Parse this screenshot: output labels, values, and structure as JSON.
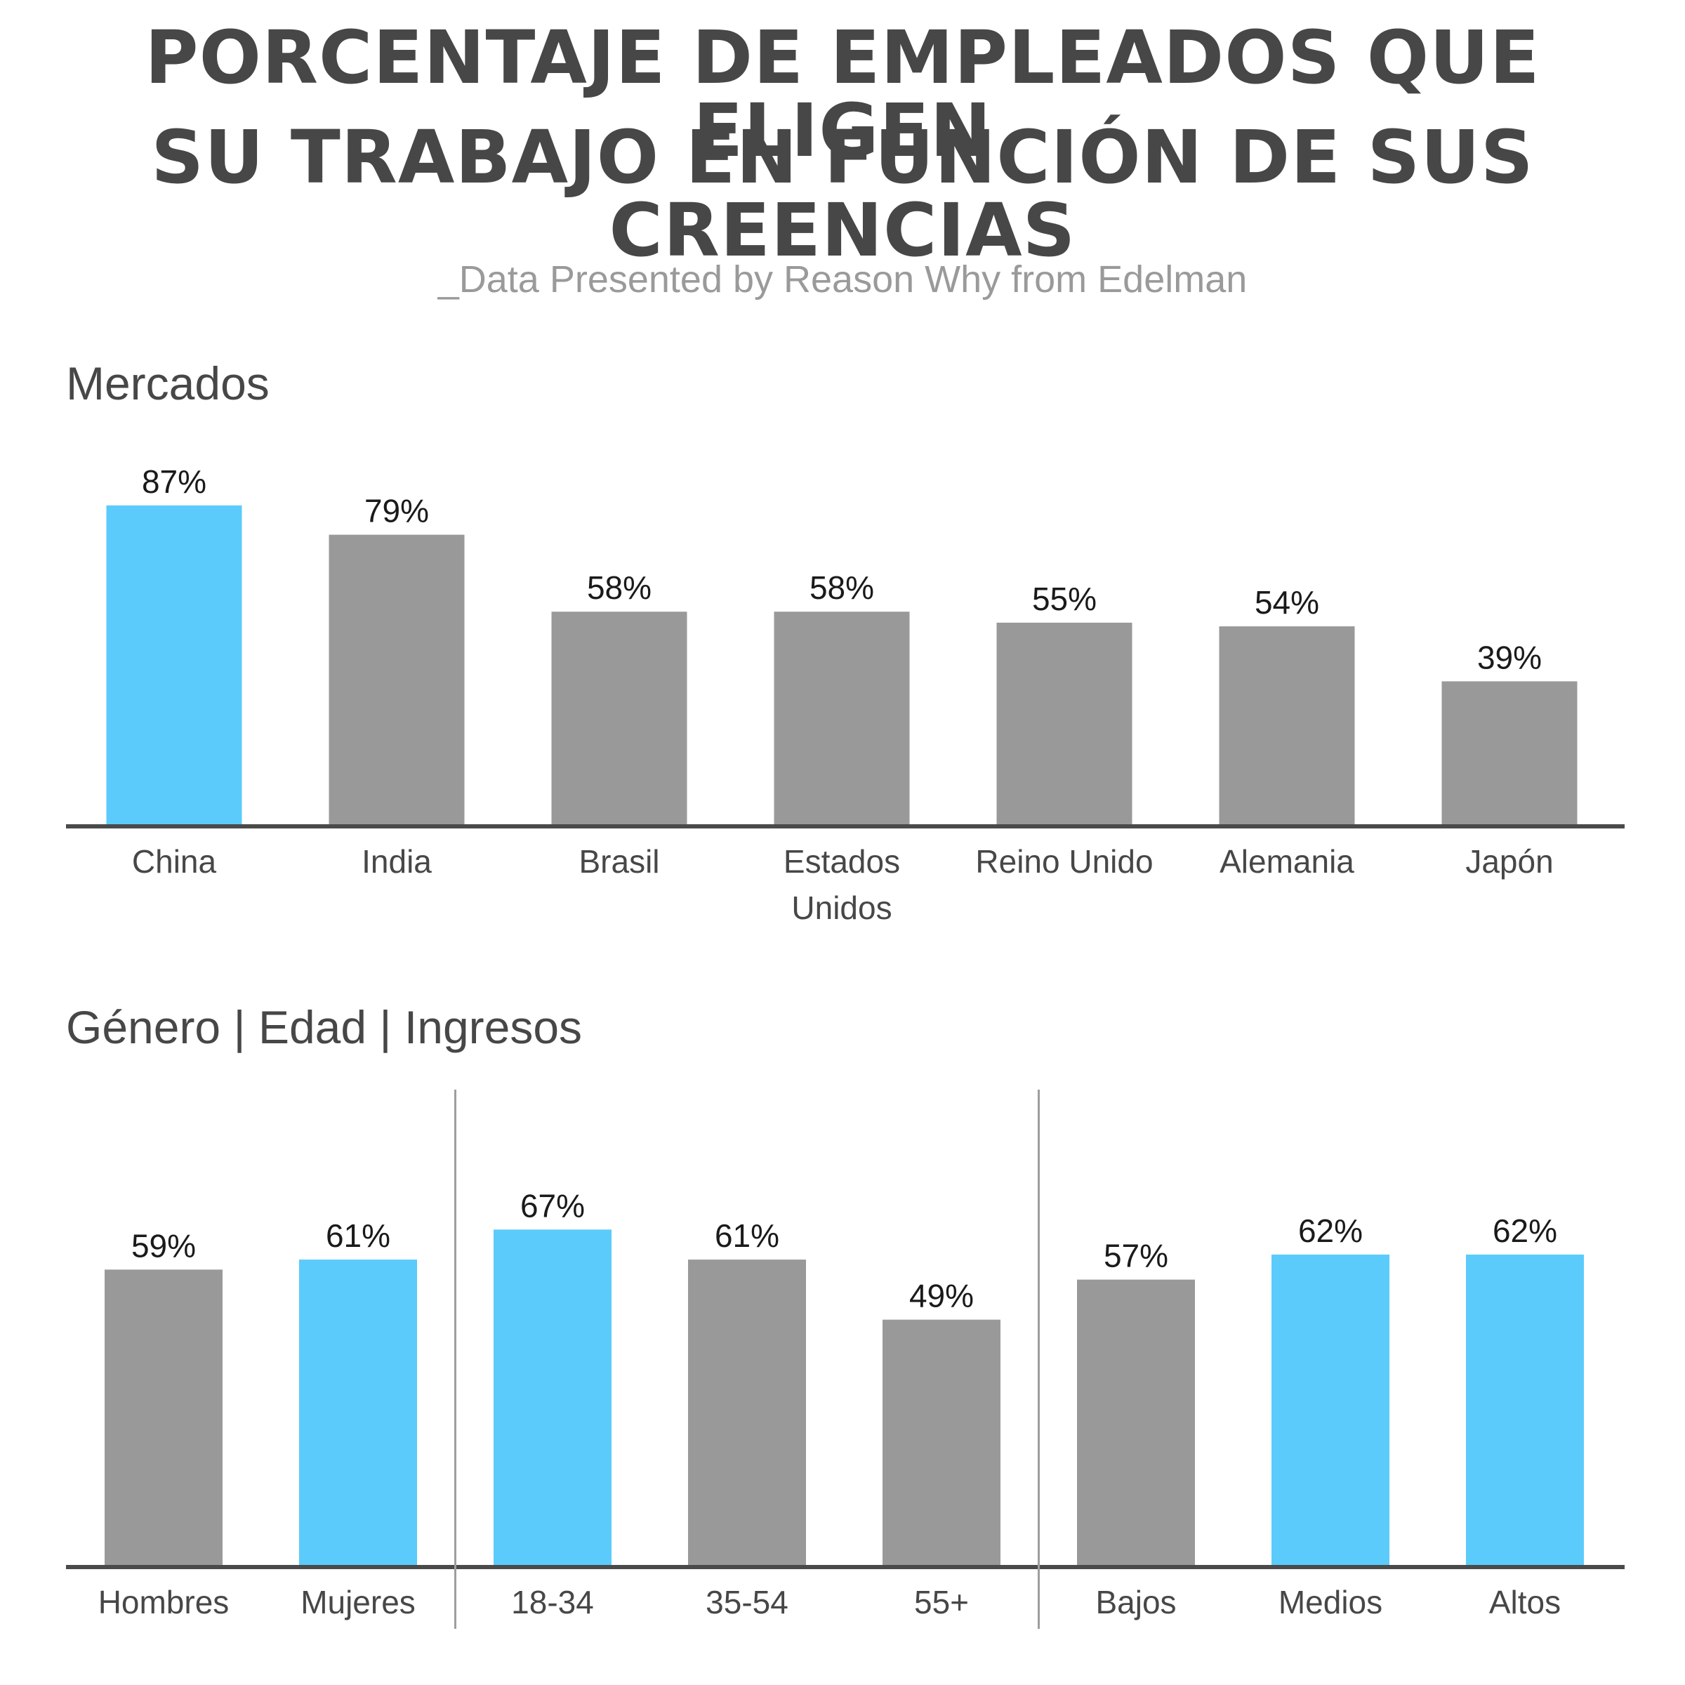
{
  "title_line1": "PORCENTAJE DE EMPLEADOS QUE ELIGEN",
  "title_line2": "SU TRABAJO EN FUNCIÓN DE SUS CREENCIAS",
  "subtitle": "_Data Presented by Reason Why from Edelman",
  "colors": {
    "highlight": "#5bcbfb",
    "default": "#999999",
    "axis": "#4a4a4a",
    "divider": "#9e9e9e"
  },
  "chart_data": [
    {
      "type": "bar",
      "title": "Mercados",
      "categories": [
        [
          "China"
        ],
        [
          "India"
        ],
        [
          "Brasil"
        ],
        [
          "Estados",
          "Unidos"
        ],
        [
          "Reino Unido"
        ],
        [
          "Alemania"
        ],
        [
          "Japón"
        ]
      ],
      "values": [
        87,
        79,
        58,
        58,
        55,
        54,
        39
      ],
      "value_labels": [
        "87%",
        "79%",
        "58%",
        "58%",
        "55%",
        "54%",
        "39%"
      ],
      "highlighted": [
        true,
        false,
        false,
        false,
        false,
        false,
        false
      ]
    },
    {
      "type": "bar",
      "title": "Género | Edad | Ingresos",
      "categories": [
        [
          "Hombres"
        ],
        [
          "Mujeres"
        ],
        [
          "18-34"
        ],
        [
          "35-54"
        ],
        [
          "55+"
        ],
        [
          "Bajos"
        ],
        [
          "Medios"
        ],
        [
          "Altos"
        ]
      ],
      "values": [
        59,
        61,
        67,
        61,
        49,
        57,
        62,
        62
      ],
      "value_labels": [
        "59%",
        "61%",
        "67%",
        "61%",
        "49%",
        "57%",
        "62%",
        "62%"
      ],
      "highlighted": [
        false,
        true,
        true,
        false,
        false,
        false,
        true,
        true
      ],
      "groups": [
        "Género",
        "Edad",
        "Ingresos"
      ],
      "group_sizes": [
        2,
        3,
        3
      ]
    }
  ]
}
